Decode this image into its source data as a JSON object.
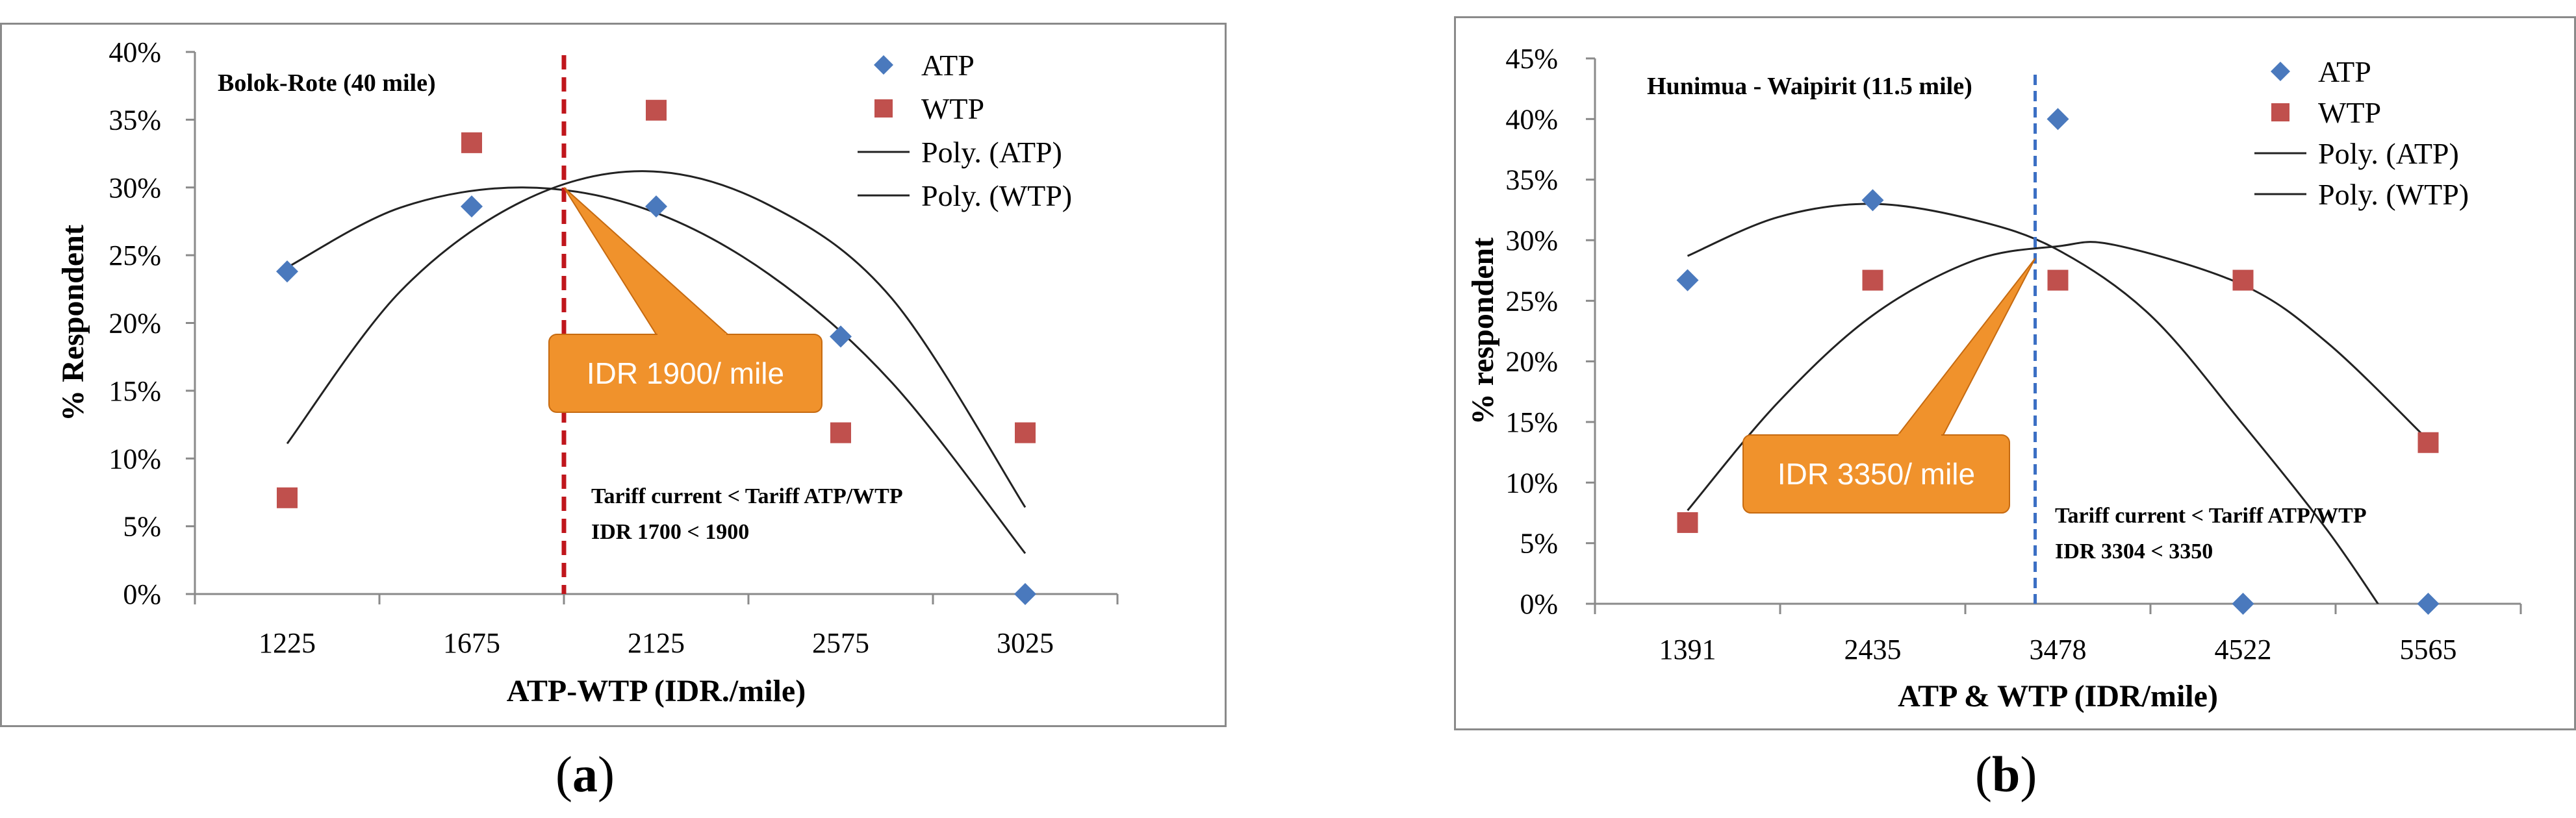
{
  "colors": {
    "atp": "#4a79bd",
    "wtp": "#c0504d",
    "curve": "#222222",
    "callout": "#f0922c",
    "callout_edge": "#c66a10",
    "axis": "#8a8a8a",
    "vline_a": "#c0161c",
    "vline_b": "#3b6fc4"
  },
  "chart_data": [
    {
      "type": "scatter",
      "title": "Bolok-Rote  (40 mile)",
      "xlabel": "ATP-WTP (IDR./mile)",
      "ylabel": "% Respondent",
      "categories": [
        "1225",
        "1675",
        "2125",
        "2575",
        "3025"
      ],
      "ylim": [
        0,
        40
      ],
      "yticks": [
        "0%",
        "5%",
        "10%",
        "15%",
        "20%",
        "25%",
        "30%",
        "35%",
        "40%"
      ],
      "series": [
        {
          "name": "ATP",
          "marker": "diamond",
          "points": [
            {
              "x": 1225,
              "y": 23.8
            },
            {
              "x": 1675,
              "y": 28.6
            },
            {
              "x": 2125,
              "y": 28.6
            },
            {
              "x": 2575,
              "y": 19.0
            },
            {
              "x": 3025,
              "y": 0.0
            }
          ]
        },
        {
          "name": "WTP",
          "marker": "square",
          "points": [
            {
              "x": 1225,
              "y": 7.1
            },
            {
              "x": 1675,
              "y": 33.3
            },
            {
              "x": 2125,
              "y": 35.7
            },
            {
              "x": 2575,
              "y": 11.9
            },
            {
              "x": 3025,
              "y": 11.9
            }
          ]
        }
      ],
      "trendlines": [
        {
          "name": "Poly. (ATP)",
          "order": 2,
          "points": [
            {
              "x": 1225,
              "y": 24.1
            },
            {
              "x": 1500,
              "y": 28.5
            },
            {
              "x": 1800,
              "y": 30.0
            },
            {
              "x": 2100,
              "y": 28.4
            },
            {
              "x": 2400,
              "y": 23.6
            },
            {
              "x": 2700,
              "y": 15.6
            },
            {
              "x": 3025,
              "y": 3.0
            }
          ]
        },
        {
          "name": "Poly. (WTP)",
          "order": 2,
          "points": [
            {
              "x": 1225,
              "y": 11.1
            },
            {
              "x": 1500,
              "y": 22.3
            },
            {
              "x": 1800,
              "y": 29.0
            },
            {
              "x": 2100,
              "y": 31.2
            },
            {
              "x": 2400,
              "y": 28.7
            },
            {
              "x": 2700,
              "y": 21.8
            },
            {
              "x": 3025,
              "y": 6.4
            }
          ]
        }
      ],
      "vline_x": 1900,
      "legend": {
        "position": "top-right",
        "entries": [
          "ATP",
          "WTP",
          "Poly. (ATP)",
          "Poly. (WTP)"
        ]
      },
      "callout": "IDR 1900/ mile",
      "callout_anchor": {
        "x": 1900,
        "y": 30.0
      },
      "note_line1": "Tariff  current < Tariff ATP/WTP",
      "note_line2": "IDR   1700 < 1900",
      "sublabel": "a"
    },
    {
      "type": "scatter",
      "title": "Hunimua - Waipirit (11.5 mile)",
      "xlabel": "ATP & WTP (IDR/mile)",
      "ylabel": "% respondent",
      "categories": [
        "1391",
        "2435",
        "3478",
        "4522",
        "5565"
      ],
      "ylim": [
        0,
        45
      ],
      "yticks": [
        "0%",
        "5%",
        "10%",
        "15%",
        "20%",
        "25%",
        "30%",
        "35%",
        "40%",
        "45%"
      ],
      "series": [
        {
          "name": "ATP",
          "marker": "diamond",
          "points": [
            {
              "x": 1391,
              "y": 26.7
            },
            {
              "x": 2435,
              "y": 33.3
            },
            {
              "x": 3478,
              "y": 40.0
            },
            {
              "x": 4522,
              "y": 0.0
            },
            {
              "x": 5565,
              "y": 0.0
            }
          ]
        },
        {
          "name": "WTP",
          "marker": "square",
          "points": [
            {
              "x": 1391,
              "y": 6.7
            },
            {
              "x": 2435,
              "y": 26.7
            },
            {
              "x": 3478,
              "y": 26.7
            },
            {
              "x": 4522,
              "y": 26.7
            },
            {
              "x": 5565,
              "y": 13.3
            }
          ]
        }
      ],
      "trendlines": [
        {
          "name": "Poly. (ATP)",
          "order": 2,
          "points": [
            {
              "x": 1391,
              "y": 28.7
            },
            {
              "x": 1900,
              "y": 31.9
            },
            {
              "x": 2435,
              "y": 33.0
            },
            {
              "x": 3000,
              "y": 31.7
            },
            {
              "x": 3478,
              "y": 29.2
            },
            {
              "x": 4000,
              "y": 23.8
            },
            {
              "x": 4522,
              "y": 14.8
            },
            {
              "x": 5000,
              "y": 6.0
            },
            {
              "x": 5350,
              "y": -1.5
            }
          ]
        },
        {
          "name": "Poly. (WTP)",
          "order": 2,
          "points": [
            {
              "x": 1391,
              "y": 7.7
            },
            {
              "x": 1900,
              "y": 16.6
            },
            {
              "x": 2435,
              "y": 23.8
            },
            {
              "x": 3000,
              "y": 28.3
            },
            {
              "x": 3478,
              "y": 29.5
            },
            {
              "x": 3800,
              "y": 29.6
            },
            {
              "x": 4522,
              "y": 26.3
            },
            {
              "x": 5000,
              "y": 21.5
            },
            {
              "x": 5565,
              "y": 13.5
            }
          ]
        }
      ],
      "vline_x": 3350,
      "legend": {
        "position": "top-right",
        "entries": [
          "ATP",
          "WTP",
          "Poly. (ATP)",
          "Poly. (WTP)"
        ]
      },
      "callout": "IDR  3350/ mile",
      "callout_anchor": {
        "x": 3350,
        "y": 28.5
      },
      "note_line1": "Tariff  current < Tariff ATP/WTP",
      "note_line2": "IDR  3304 < 3350",
      "sublabel": "b"
    }
  ]
}
